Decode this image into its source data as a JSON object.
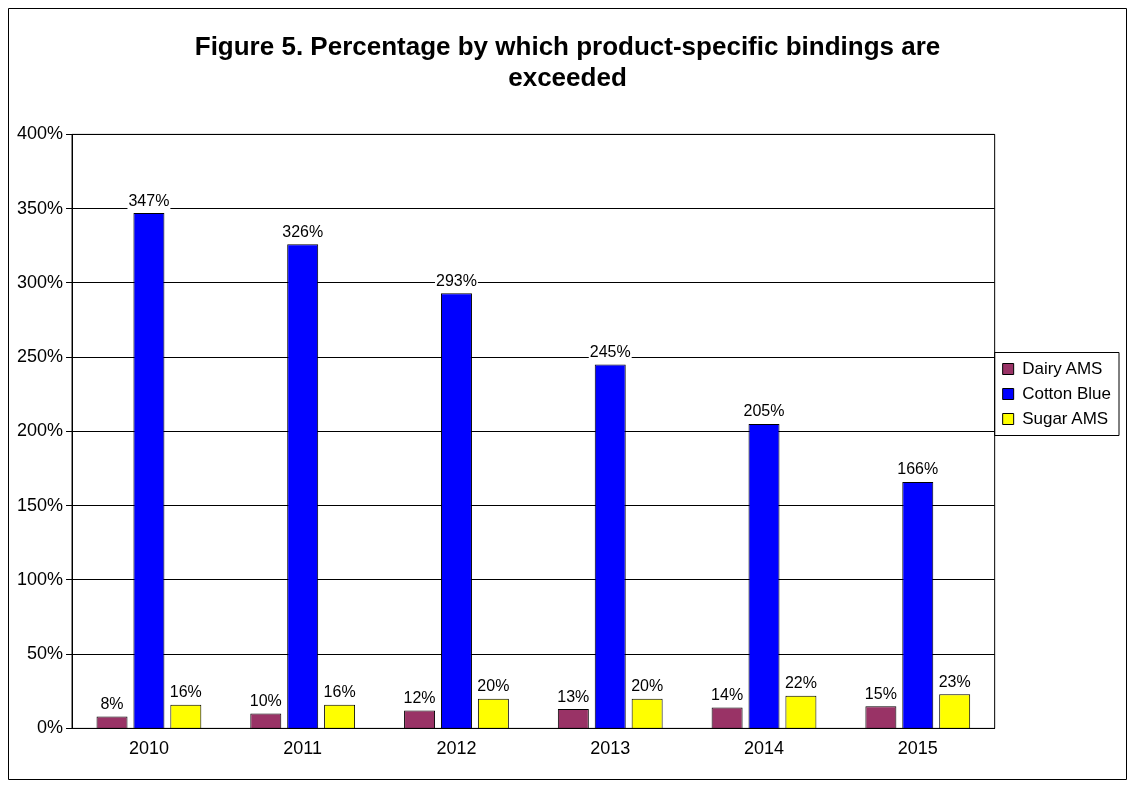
{
  "chart_data": {
    "type": "bar",
    "title": "Figure 5. Percentage by which product-specific bindings are exceeded",
    "categories": [
      "2010",
      "2011",
      "2012",
      "2013",
      "2014",
      "2015"
    ],
    "series": [
      {
        "name": "Dairy AMS",
        "color": "#993366",
        "values": [
          8,
          10,
          12,
          13,
          14,
          15
        ],
        "value_labels": [
          "8%",
          "10%",
          "12%",
          "13%",
          "14%",
          "15%"
        ]
      },
      {
        "name": "Cotton Blue",
        "color": "#0000ff",
        "values": [
          347,
          326,
          293,
          245,
          205,
          166
        ],
        "value_labels": [
          "347%",
          "326%",
          "293%",
          "245%",
          "205%",
          "166%"
        ]
      },
      {
        "name": "Sugar AMS",
        "color": "#ffff00",
        "values": [
          16,
          16,
          20,
          20,
          22,
          23
        ],
        "value_labels": [
          "16%",
          "16%",
          "20%",
          "20%",
          "22%",
          "23%"
        ]
      }
    ],
    "ylim": [
      0,
      400
    ],
    "yticks": [
      {
        "value": 0,
        "label": "0%"
      },
      {
        "value": 50,
        "label": "50%"
      },
      {
        "value": 100,
        "label": "100%"
      },
      {
        "value": 150,
        "label": "150%"
      },
      {
        "value": 200,
        "label": "200%"
      },
      {
        "value": 250,
        "label": "250%"
      },
      {
        "value": 300,
        "label": "300%"
      },
      {
        "value": 350,
        "label": "350%"
      },
      {
        "value": 400,
        "label": "400%"
      }
    ],
    "grid": "y",
    "legend": "right"
  }
}
